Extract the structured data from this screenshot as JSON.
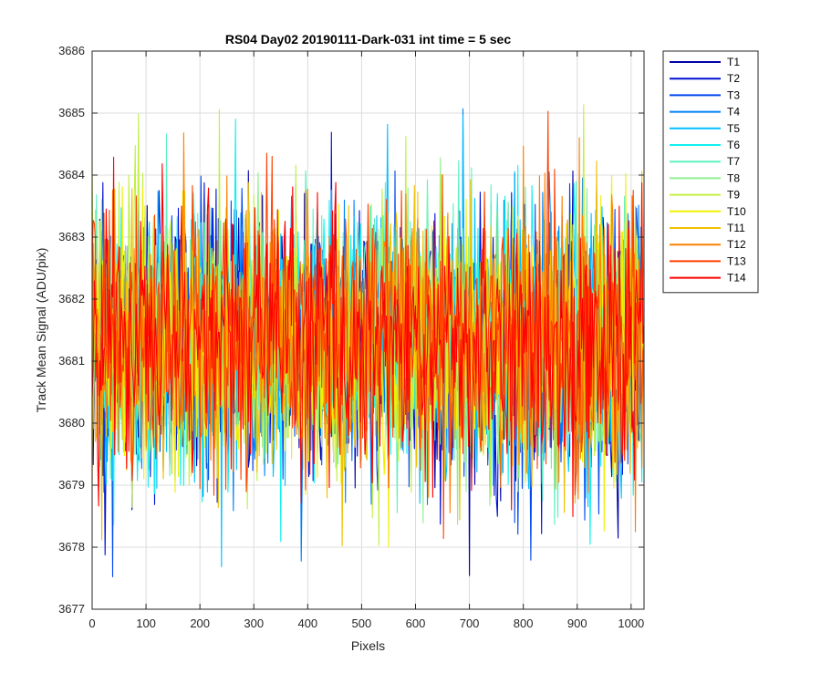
{
  "chart_data": {
    "type": "line",
    "title": "RS04 Day02 20190111-Dark-031 int time = 5 sec",
    "xlabel": "Pixels",
    "ylabel": "Track Mean Signal (ADU/pix)",
    "xlim": [
      0,
      1024
    ],
    "ylim": [
      3677,
      3686
    ],
    "xticks": [
      0,
      100,
      200,
      300,
      400,
      500,
      600,
      700,
      800,
      900,
      1000
    ],
    "yticks": [
      3677,
      3678,
      3679,
      3680,
      3681,
      3682,
      3683,
      3684,
      3685,
      3686
    ],
    "grid": true,
    "legend_position": "outside-top-right",
    "series_mean": 3681.3,
    "series_noise_range": [
      3677.4,
      3685.2
    ],
    "series": [
      {
        "name": "T1",
        "color": "#0000a8"
      },
      {
        "name": "T2",
        "color": "#0011d4"
      },
      {
        "name": "T3",
        "color": "#0048f0"
      },
      {
        "name": "T4",
        "color": "#0081f8"
      },
      {
        "name": "T5",
        "color": "#00c0ff"
      },
      {
        "name": "T6",
        "color": "#10f0f0"
      },
      {
        "name": "T7",
        "color": "#5ff0c0"
      },
      {
        "name": "T8",
        "color": "#8ff08f"
      },
      {
        "name": "T9",
        "color": "#c0f040"
      },
      {
        "name": "T10",
        "color": "#f0f000"
      },
      {
        "name": "T11",
        "color": "#f0c000"
      },
      {
        "name": "T12",
        "color": "#ff8000"
      },
      {
        "name": "T13",
        "color": "#ff4000"
      },
      {
        "name": "T14",
        "color": "#ff0000"
      }
    ]
  }
}
